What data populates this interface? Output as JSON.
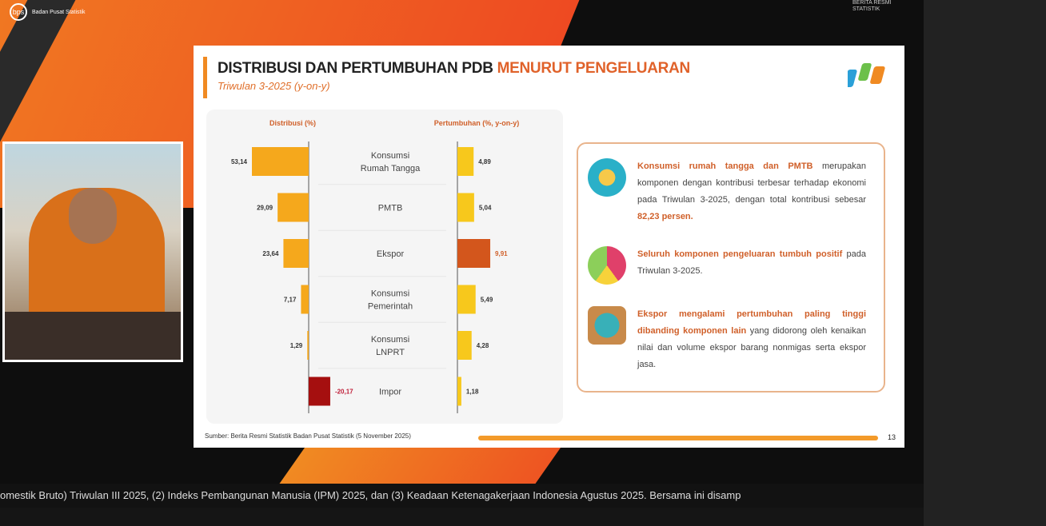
{
  "broadcast": {
    "org_logo": "Badan Pusat Statistik",
    "corner_logo": "BERITA RESMI STATISTIK",
    "ticker": "omestik Bruto) Triwulan III 2025, (2) Indeks Pembangunan Manusia (IPM) 2025, dan (3) Keadaan Ketenagakerjaan Indonesia Agustus 2025.        Bersama ini disamp"
  },
  "slide": {
    "title_main": "DISTRIBUSI DAN PERTUMBUHAN PDB ",
    "title_accent": "MENURUT PENGELUARAN",
    "subtitle": "Triwulan 3-2025 (y-on-y)",
    "source": "Sumber: Berita Resmi Statistik Badan Pusat Statistik (5 November 2025)",
    "page_number": "13",
    "insights": [
      {
        "icon": "household-consumption-icon",
        "highlight": "Konsumsi rumah tangga dan PMTB",
        "text": " merupakan komponen dengan kontribusi terbesar terhadap ekonomi pada Triwulan 3-2025, dengan total kontribusi sebesar ",
        "highlight2": "82,23 persen."
      },
      {
        "icon": "pie-growth-icon",
        "highlight": "Seluruh komponen pengeluaran tumbuh positif",
        "text": " pada Triwulan 3-2025."
      },
      {
        "icon": "export-globe-icon",
        "highlight": "Ekspor mengalami pertumbuhan paling tinggi dibanding komponen lain",
        "text": " yang didorong oleh kenaikan nilai dan volume ekspor barang nonmigas serta ekspor jasa."
      }
    ]
  },
  "chart_data": {
    "type": "bar",
    "orientation": "horizontal",
    "categories": [
      "Konsumsi Rumah Tangga",
      "PMTB",
      "Ekspor",
      "Konsumsi Pemerintah",
      "Konsumsi LNPRT",
      "Impor"
    ],
    "series": [
      {
        "name": "Distribusi (%)",
        "values": [
          53.14,
          29.09,
          23.64,
          7.17,
          1.29,
          -20.17
        ],
        "labels": [
          "53,14",
          "29,09",
          "23,64",
          "7,17",
          "1,29",
          "-20,17"
        ],
        "color": "#f5a81c",
        "negative_color": "#a50f0f"
      },
      {
        "name": "Pertumbuhan (%, y-on-y)",
        "values": [
          4.89,
          5.04,
          9.91,
          5.49,
          4.28,
          1.18
        ],
        "labels": [
          "4,89",
          "5,04",
          "9,91",
          "5,49",
          "4,28",
          "1,18"
        ],
        "color": "#f7c81c",
        "highlight_color": "#d3561c"
      }
    ]
  }
}
